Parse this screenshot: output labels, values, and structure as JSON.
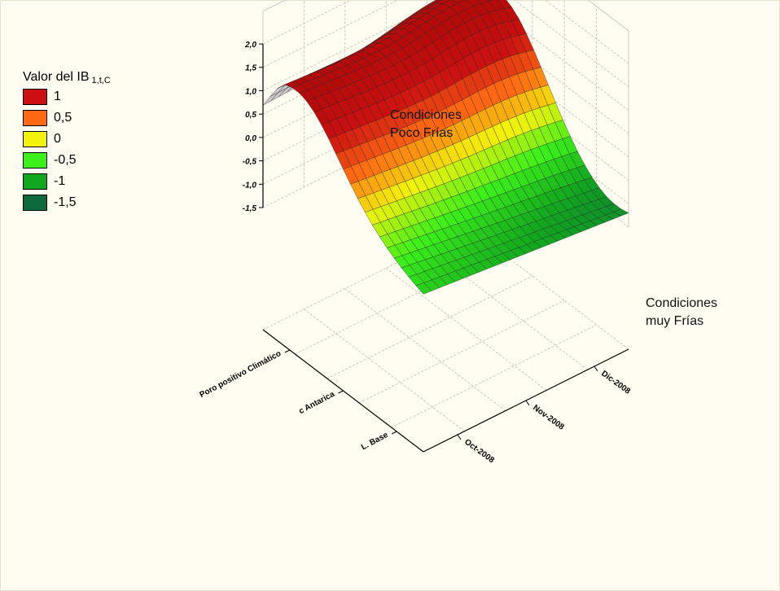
{
  "chart_data": {
    "type": "surface3d",
    "title": "",
    "legend": {
      "title": "Valor del IB",
      "title_subscript": "1,t,C",
      "placement": "top-left",
      "entries": [
        {
          "label": "1",
          "color": "#cc1010"
        },
        {
          "label": "0,5",
          "color": "#ff6a12"
        },
        {
          "label": "0",
          "color": "#f2f20a"
        },
        {
          "label": "-0,5",
          "color": "#3cf01a"
        },
        {
          "label": "-1",
          "color": "#12a81e"
        },
        {
          "label": "-1,5",
          "color": "#0b6b3c"
        }
      ]
    },
    "z_axis": {
      "ticks": [
        "2,0",
        "1,5",
        "1,0",
        "0,5",
        "0,0",
        "-0,5",
        "-1,0",
        "-1,5"
      ],
      "range": [
        -1.5,
        2.0
      ]
    },
    "time_axis": {
      "ticks": [
        "Oct-2008",
        "Nov-2008",
        "Dic-2008"
      ]
    },
    "condition_axis": {
      "ticks": [
        "L. Base",
        "c Antarica",
        "Poro positivo Climático"
      ]
    },
    "annotations": [
      {
        "lines": [
          "Condiciones",
          "Poco Frías"
        ]
      },
      {
        "lines": [
          "Condiciones",
          "muy Frías"
        ]
      }
    ],
    "grid": true
  }
}
